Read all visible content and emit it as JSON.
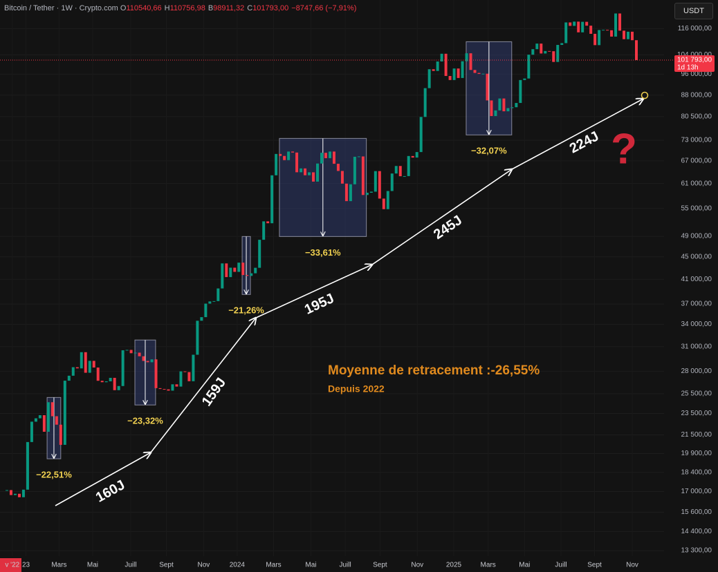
{
  "header": {
    "symbol": "Bitcoin / Tether · 1W · Crypto.com",
    "open_key": "O",
    "open": "110540,66",
    "high_key": "H",
    "high": "110756,98",
    "low_key": "B",
    "low": "98911,32",
    "close_key": "C",
    "close": "101793,00",
    "change": "−8747,66 (−7,91%)",
    "currency": "USDT"
  },
  "chart_data": {
    "type": "candlestick",
    "log_scale": true,
    "grid": true,
    "series": [
      {
        "up_color": "#089981",
        "down_color": "#f23645",
        "values": [
          17100,
          16750,
          16840,
          16600,
          17130,
          20870,
          22710,
          23030,
          23330,
          21780,
          24620,
          23230,
          22430,
          20630,
          26920,
          27480,
          28470,
          28330,
          30300,
          27820,
          29230,
          28430,
          26910,
          26750,
          26850,
          27240,
          25880,
          26330,
          30540,
          30590,
          30170,
          30240,
          29790,
          29220,
          29060,
          29410,
          26100,
          26010,
          25970,
          25830,
          26520,
          26270,
          27980,
          27900,
          26860,
          29980,
          34520,
          35040,
          37060,
          37400,
          37450,
          39470,
          43790,
          41370,
          43020,
          42280,
          43930,
          41730,
          41580,
          42030,
          43000,
          48300,
          52140,
          51730,
          63110,
          68960,
          68390,
          67210,
          69650,
          69360,
          63910,
          64940,
          63120,
          63900,
          61480,
          66270,
          69290,
          67760,
          69650,
          66200,
          64260,
          60970,
          56700,
          60800,
          68160,
          68250,
          58160,
          58710,
          58970,
          64220,
          57300,
          54840,
          59130,
          63580,
          65600,
          62870,
          62900,
          68370,
          67930,
          69500,
          80400,
          90600,
          98000,
          97300,
          101200,
          104500,
          95300,
          93700,
          98300,
          94500,
          101300,
          104700,
          97700,
          96500,
          96100,
          96200,
          86100,
          80700,
          82600,
          86800,
          82300,
          83400,
          83700,
          85200,
          93700,
          94300,
          104100,
          106500,
          109000,
          104600,
          105700,
          105600,
          101000,
          108400,
          109200,
          119000,
          117300,
          119400,
          114200,
          119300,
          117400,
          113500,
          108300,
          115300,
          115400,
          115200,
          112200,
          123500,
          115000,
          111000,
          114500,
          110540.66,
          101793
        ]
      }
    ],
    "ylim": [
      13190,
      130600
    ],
    "yticks": [
      {
        "value": 116000,
        "label": "116 000,00"
      },
      {
        "value": 104000,
        "label": "104 000,00"
      },
      {
        "value": 96000,
        "label": "96 000,00"
      },
      {
        "value": 88000,
        "label": "88 000,00"
      },
      {
        "value": 80500,
        "label": "80 500,00"
      },
      {
        "value": 73000,
        "label": "73 000,00"
      },
      {
        "value": 67000,
        "label": "67 000,00"
      },
      {
        "value": 61000,
        "label": "61 000,00"
      },
      {
        "value": 55000,
        "label": "55 000,00"
      },
      {
        "value": 49000,
        "label": "49 000,00"
      },
      {
        "value": 45000,
        "label": "45 000,00"
      },
      {
        "value": 41000,
        "label": "41 000,00"
      },
      {
        "value": 37000,
        "label": "37 000,00"
      },
      {
        "value": 34000,
        "label": "34 000,00"
      },
      {
        "value": 31000,
        "label": "31 000,00"
      },
      {
        "value": 28000,
        "label": "28 000,00"
      },
      {
        "value": 25500,
        "label": "25 500,00"
      },
      {
        "value": 23500,
        "label": "23 500,00"
      },
      {
        "value": 21500,
        "label": "21 500,00"
      },
      {
        "value": 19900,
        "label": "19 900,00"
      },
      {
        "value": 18400,
        "label": "18 400,00"
      },
      {
        "value": 17000,
        "label": "17 000,00"
      },
      {
        "value": 15600,
        "label": "15 600,00"
      },
      {
        "value": 14400,
        "label": "14 400,00"
      },
      {
        "value": 13300,
        "label": "13 300,00"
      }
    ],
    "xticks": [
      {
        "value": 1.3,
        "label": "v '22"
      },
      {
        "value": 4.6,
        "label": "23"
      },
      {
        "value": 12.6,
        "label": "Mars"
      },
      {
        "value": 20.7,
        "label": "Mai"
      },
      {
        "value": 29.9,
        "label": "Juill"
      },
      {
        "value": 38.5,
        "label": "Sept"
      },
      {
        "value": 47.5,
        "label": "Nov"
      },
      {
        "value": 55.6,
        "label": "2024"
      },
      {
        "value": 64.4,
        "label": "Mars"
      },
      {
        "value": 73.4,
        "label": "Mai"
      },
      {
        "value": 81.7,
        "label": "Juill"
      },
      {
        "value": 90.1,
        "label": "Sept"
      },
      {
        "value": 99.1,
        "label": "Nov"
      },
      {
        "value": 107.9,
        "label": "2025"
      },
      {
        "value": 116.2,
        "label": "Mars"
      },
      {
        "value": 125.0,
        "label": "Mai"
      },
      {
        "value": 133.8,
        "label": "Juill"
      },
      {
        "value": 141.9,
        "label": "Sept"
      },
      {
        "value": 151.0,
        "label": "Nov"
      }
    ],
    "price_tag": {
      "value": 101793,
      "label": "101 793,00",
      "countdown": "1d 13h"
    },
    "boxes": [
      {
        "start": 9.7,
        "end": 13.0,
        "top": 25110,
        "bottom": 19470,
        "change": {
          "value": -22.51,
          "label": "−22,51%"
        }
      },
      {
        "start": 30.9,
        "end": 35.9,
        "top": 31870,
        "bottom": 24340,
        "change": {
          "value": -23.32,
          "label": "−23,32%"
        }
      },
      {
        "start": 56.8,
        "end": 58.8,
        "top": 48960,
        "bottom": 38490,
        "change": {
          "value": -21.26,
          "label": "−21,26%"
        }
      },
      {
        "start": 65.8,
        "end": 86.8,
        "top": 73550,
        "bottom": 48960,
        "change": {
          "value": -33.61,
          "label": "−33,61%"
        }
      },
      {
        "start": 110.9,
        "end": 121.9,
        "top": 109850,
        "bottom": 74620,
        "change": {
          "value": -32.07,
          "label": "−32,07%"
        }
      }
    ],
    "annotations": [
      "160J",
      "159J",
      "195J",
      "245J",
      "224J"
    ],
    "note_title": "Moyenne de retracement :-26,55%",
    "note_subtitle": "Depuis 2022",
    "question": "?"
  }
}
